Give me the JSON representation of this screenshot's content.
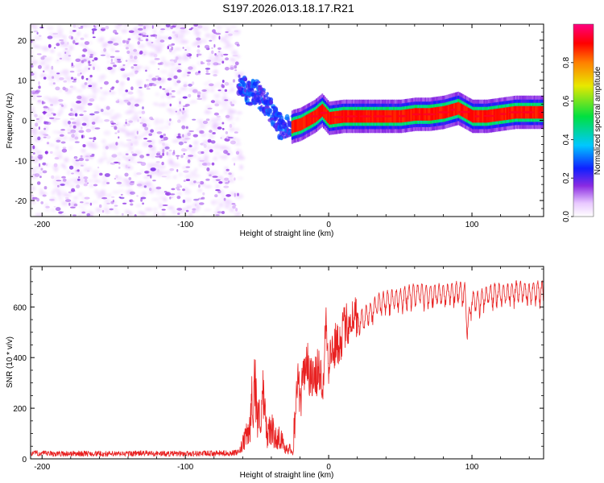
{
  "figure": {
    "title": "S197.2026.013.18.17.R21"
  },
  "chart_data": [
    {
      "type": "heatmap",
      "title": "S197.2026.013.18.17.R21",
      "xlabel": "Height of straight line (km)",
      "ylabel": "Frequency (Hz)",
      "xlim": [
        -208,
        150
      ],
      "ylim": [
        -24,
        24
      ],
      "xticks": [
        -200,
        -100,
        0,
        100
      ],
      "yticks": [
        -20,
        -10,
        0,
        10,
        20
      ],
      "colorbar": {
        "label": "Normalized spectral amplitude",
        "range": [
          0,
          1
        ],
        "ticks": [
          0.0,
          0.2,
          0.4,
          0.6,
          0.8
        ],
        "colors": [
          "#ffffff",
          "#e8c8ff",
          "#8a2be2",
          "#1020ff",
          "#00c8ff",
          "#00e040",
          "#e8e800",
          "#ff8000",
          "#ff0000",
          "#ff0080"
        ]
      },
      "regions": [
        {
          "name": "noise",
          "x": [
            -208,
            -63
          ],
          "y": [
            -24,
            24
          ],
          "amplitude": 0.1
        },
        {
          "name": "onset",
          "x": [
            -63,
            -25
          ],
          "y_start": 8,
          "y_end": -3,
          "amplitude": 0.25
        },
        {
          "name": "carrier",
          "x": [
            -25,
            150
          ],
          "y": 1.0,
          "amplitude": 0.85
        }
      ],
      "ridge": [
        {
          "x": -60,
          "y": 8
        },
        {
          "x": -55,
          "y": 6.5
        },
        {
          "x": -50,
          "y": 7
        },
        {
          "x": -45,
          "y": 5
        },
        {
          "x": -40,
          "y": 2.5
        },
        {
          "x": -35,
          "y": -1
        },
        {
          "x": -30,
          "y": -2.5
        },
        {
          "x": -25,
          "y": -1.5
        },
        {
          "x": -20,
          "y": -1
        },
        {
          "x": -15,
          "y": 0
        },
        {
          "x": -10,
          "y": 1
        },
        {
          "x": -5,
          "y": 2.5
        },
        {
          "x": 0,
          "y": 0.5
        },
        {
          "x": 10,
          "y": 1
        },
        {
          "x": 20,
          "y": 1
        },
        {
          "x": 30,
          "y": 1
        },
        {
          "x": 40,
          "y": 1
        },
        {
          "x": 50,
          "y": 1
        },
        {
          "x": 60,
          "y": 1.5
        },
        {
          "x": 70,
          "y": 1.5
        },
        {
          "x": 80,
          "y": 2
        },
        {
          "x": 90,
          "y": 3
        },
        {
          "x": 100,
          "y": 1
        },
        {
          "x": 110,
          "y": 1
        },
        {
          "x": 120,
          "y": 1.5
        },
        {
          "x": 130,
          "y": 2
        },
        {
          "x": 140,
          "y": 2
        },
        {
          "x": 150,
          "y": 2
        }
      ]
    },
    {
      "type": "line",
      "xlabel": "Height of straight line (km)",
      "ylabel": "SNR (10 * v/v)",
      "xlim": [
        -208,
        150
      ],
      "ylim": [
        0,
        760
      ],
      "xticks": [
        -200,
        -100,
        0,
        100
      ],
      "yticks": [
        0,
        200,
        400,
        600
      ],
      "series": [
        {
          "name": "SNR",
          "color": "#e82020",
          "x": [
            -208,
            -190,
            -170,
            -150,
            -130,
            -110,
            -90,
            -70,
            -63,
            -55,
            -52,
            -49,
            -46,
            -43,
            -40,
            -37,
            -34,
            -31,
            -28,
            -25,
            -22,
            -19,
            -16,
            -13,
            -10,
            -7,
            -4,
            -2,
            0,
            2,
            5,
            8,
            11,
            14,
            17,
            20,
            25,
            30,
            35,
            40,
            45,
            50,
            55,
            60,
            65,
            70,
            75,
            80,
            85,
            90,
            95,
            97,
            100,
            105,
            110,
            115,
            120,
            125,
            130,
            135,
            140,
            145,
            150
          ],
          "values": [
            22,
            20,
            21,
            19,
            22,
            20,
            21,
            22,
            25,
            150,
            400,
            180,
            300,
            120,
            150,
            100,
            110,
            60,
            50,
            40,
            300,
            250,
            400,
            330,
            300,
            360,
            300,
            560,
            380,
            420,
            450,
            470,
            520,
            540,
            560,
            570,
            600,
            620,
            650,
            660,
            665,
            670,
            680,
            690,
            690,
            685,
            690,
            690,
            690,
            700,
            690,
            560,
            660,
            660,
            680,
            690,
            690,
            690,
            700,
            700,
            690,
            700,
            700
          ]
        }
      ]
    }
  ]
}
